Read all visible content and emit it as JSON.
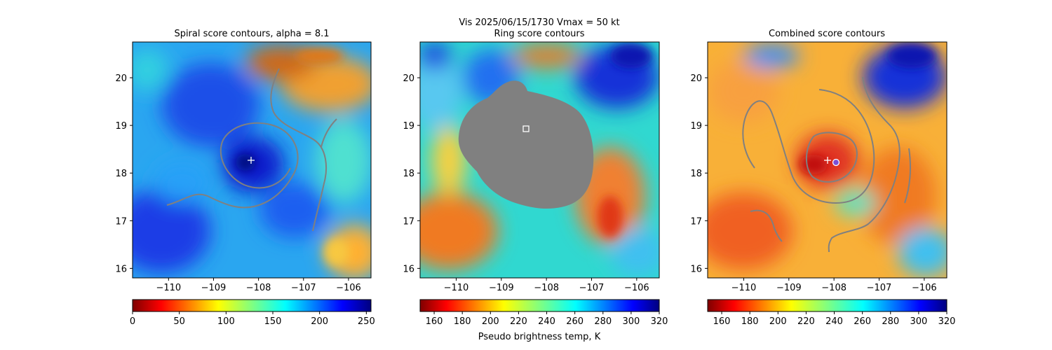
{
  "figure": {
    "suptitle_line1": "Vis  2025/06/15/1730    Vmax = 50 kt",
    "colorbar_label": "Pseudo brightness temp, K"
  },
  "chart_data": [
    {
      "type": "heatmap",
      "title": "Spiral score contours, alpha =  8.1",
      "xlim": [
        -110.8,
        -105.5
      ],
      "ylim": [
        15.8,
        20.75
      ],
      "xticks": [
        -110,
        -109,
        -108,
        -107,
        -106
      ],
      "xtick_labels": [
        "−110",
        "−109",
        "−108",
        "−107",
        "−106"
      ],
      "yticks": [
        16,
        17,
        18,
        19,
        20
      ],
      "ytick_labels": [
        "16",
        "17",
        "18",
        "19",
        "20"
      ],
      "colormap": "jet",
      "center_marker": {
        "symbol": "+",
        "lon": -108.0,
        "lat": 18.25,
        "color": "#ffffff"
      },
      "colorbar": {
        "cmap": "jet",
        "ticks": [
          0,
          50,
          100,
          150,
          200,
          250
        ],
        "tick_labels": [
          "0",
          "50",
          "100",
          "150",
          "200",
          "250"
        ],
        "range": [
          0,
          255
        ]
      }
    },
    {
      "type": "heatmap",
      "title": "Ring score contours",
      "xlim": [
        -110.8,
        -105.5
      ],
      "ylim": [
        15.8,
        20.75
      ],
      "xticks": [
        -110,
        -109,
        -108,
        -107,
        -106
      ],
      "xtick_labels": [
        "−110",
        "−109",
        "−108",
        "−107",
        "−106"
      ],
      "yticks": [
        16,
        17,
        18,
        19,
        20
      ],
      "ytick_labels": [
        "16",
        "17",
        "18",
        "19",
        "20"
      ],
      "colormap": "jet_r",
      "masked_region_color": "#808080",
      "center_marker": {
        "symbol": "square",
        "lon": -108.5,
        "lat": 18.95,
        "color": "#ffffff"
      },
      "colorbar": {
        "cmap": "jet_r",
        "ticks": [
          160,
          180,
          200,
          220,
          240,
          260,
          280,
          300,
          320
        ],
        "tick_labels": [
          "160",
          "180",
          "200",
          "220",
          "240",
          "260",
          "280",
          "300",
          "320"
        ],
        "range": [
          150,
          320
        ]
      }
    },
    {
      "type": "heatmap",
      "title": "Combined score contours",
      "xlim": [
        -110.8,
        -105.5
      ],
      "ylim": [
        15.8,
        20.75
      ],
      "xticks": [
        -110,
        -109,
        -108,
        -107,
        -106
      ],
      "xtick_labels": [
        "−110",
        "−109",
        "−108",
        "−107",
        "−106"
      ],
      "yticks": [
        16,
        17,
        18,
        19,
        20
      ],
      "ytick_labels": [
        "16",
        "17",
        "18",
        "19",
        "20"
      ],
      "colormap": "jet_r",
      "center_marker": {
        "symbol": "+",
        "lon": -108.1,
        "lat": 18.25,
        "color": "#ffffff"
      },
      "circle_marker": {
        "symbol": "circle",
        "lon": -107.9,
        "lat": 18.25,
        "color": "#7b4fd6"
      },
      "colorbar": {
        "cmap": "jet_r",
        "ticks": [
          160,
          180,
          200,
          220,
          240,
          260,
          280,
          300,
          320
        ],
        "tick_labels": [
          "160",
          "180",
          "200",
          "220",
          "240",
          "260",
          "280",
          "300",
          "320"
        ],
        "range": [
          150,
          320
        ]
      }
    }
  ]
}
